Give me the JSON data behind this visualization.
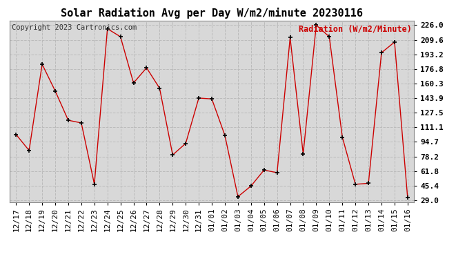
{
  "title": "Solar Radiation Avg per Day W/m2/minute 20230116",
  "copyright_text": "Copyright 2023 Cartronics.com",
  "legend_label": "Radiation (W/m2/Minute)",
  "dates": [
    "12/17",
    "12/18",
    "12/19",
    "12/20",
    "12/21",
    "12/22",
    "12/23",
    "12/24",
    "12/25",
    "12/26",
    "12/27",
    "12/28",
    "12/29",
    "12/30",
    "12/31",
    "01/01",
    "01/02",
    "01/03",
    "01/04",
    "01/05",
    "01/06",
    "01/07",
    "01/08",
    "01/09",
    "01/10",
    "01/11",
    "01/12",
    "01/13",
    "01/14",
    "01/15",
    "01/16"
  ],
  "values": [
    103.0,
    85.0,
    182.0,
    152.0,
    119.0,
    116.0,
    47.0,
    222.0,
    213.0,
    161.0,
    178.0,
    155.0,
    80.0,
    93.0,
    144.0,
    143.0,
    102.0,
    33.0,
    45.0,
    63.0,
    60.0,
    212.0,
    81.0,
    226.0,
    213.0,
    100.0,
    47.0,
    48.0,
    195.0,
    207.0,
    32.0
  ],
  "ymin": 29.0,
  "ymax": 226.0,
  "ytick_values": [
    29.0,
    45.4,
    61.8,
    78.2,
    94.7,
    111.1,
    127.5,
    143.9,
    160.3,
    176.8,
    193.2,
    209.6,
    226.0
  ],
  "line_color": "#cc0000",
  "marker_color": "#000000",
  "plot_bg_color": "#d8d8d8",
  "background_color": "#ffffff",
  "grid_color": "#bbbbbb",
  "title_fontsize": 11,
  "legend_fontsize": 8.5,
  "tick_fontsize": 8,
  "copyright_fontsize": 7.5
}
